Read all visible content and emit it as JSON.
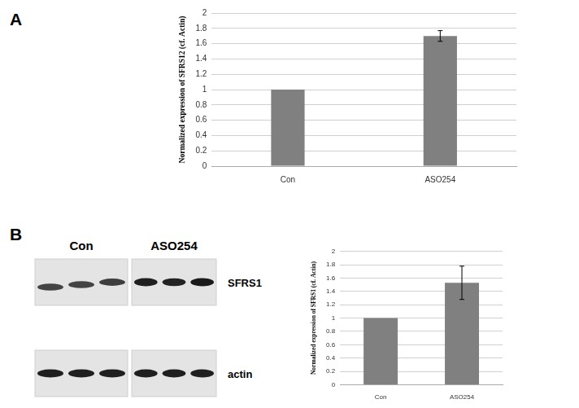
{
  "panels": [
    "A",
    "B"
  ],
  "blot": {
    "groups": [
      "Con",
      "ASO254"
    ],
    "bands": [
      "SFRS1",
      "actin"
    ]
  },
  "chart_data": [
    {
      "type": "bar",
      "categories": [
        "Con",
        "ASO254"
      ],
      "values": [
        1,
        1.7
      ],
      "errors": [
        null,
        0.07
      ],
      "y_label": "Normalized expression of SFRS12 (cf. Actin)",
      "color": "#808080",
      "ylim": [
        0,
        2
      ],
      "yticks": [
        0,
        0.2,
        0.4,
        0.6,
        0.8,
        1,
        1.2,
        1.4,
        1.6,
        1.8,
        2
      ],
      "grid": true
    },
    {
      "type": "bar",
      "categories": [
        "Con",
        "ASO254"
      ],
      "values": [
        1,
        1.53
      ],
      "errors": [
        null,
        0.25
      ],
      "y_label": "Normalized expression of SFRS1 (cf. Actin)",
      "color": "#808080",
      "ylim": [
        0,
        2
      ],
      "yticks": [
        0,
        0.2,
        0.4,
        0.6,
        0.8,
        1,
        1.2,
        1.4,
        1.6,
        1.8,
        2
      ],
      "grid": true
    }
  ]
}
